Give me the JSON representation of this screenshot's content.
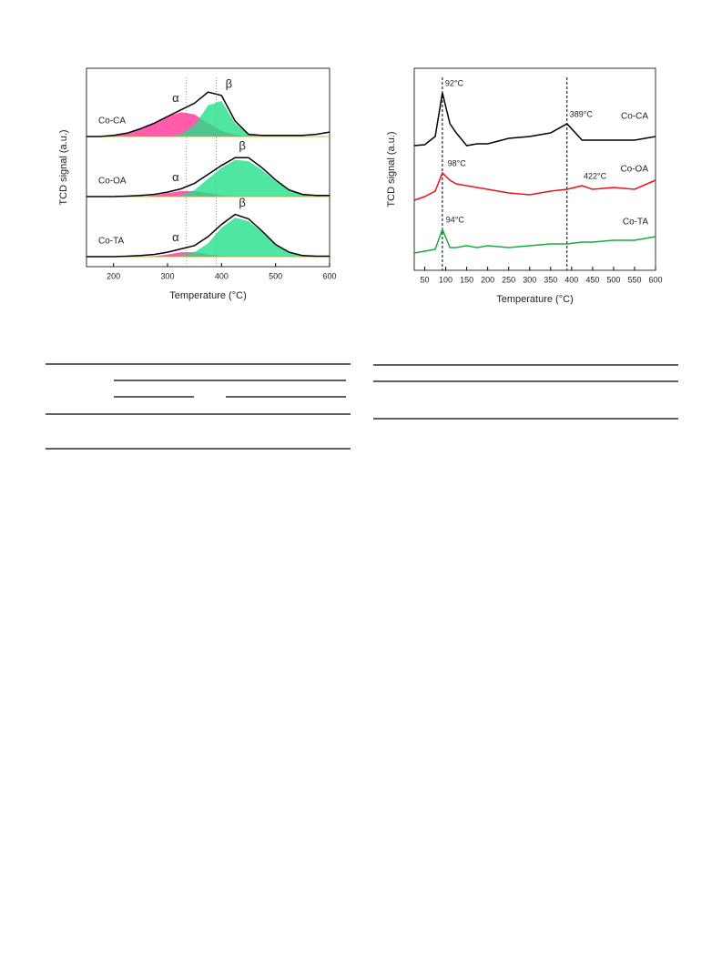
{
  "chart_data": [
    {
      "type": "line",
      "xlabel": "Temperature (°C)",
      "ylabel": "TCD signal (a.u.)",
      "x": [
        150,
        175,
        200,
        225,
        250,
        275,
        300,
        325,
        350,
        375,
        400,
        425,
        450,
        475,
        500,
        525,
        550,
        575,
        600
      ],
      "xlim": [
        150,
        600
      ],
      "xticks": [
        200,
        300,
        400,
        500,
        600
      ],
      "ylim": [
        0,
        2.5
      ],
      "vlines": [
        335,
        390
      ],
      "series": [
        {
          "name": "Co-CA",
          "color": "#000000",
          "values": [
            0,
            0,
            0.05,
            0.15,
            0.35,
            0.6,
            0.9,
            1.2,
            1.5,
            2.0,
            1.85,
            0.7,
            0.1,
            0.05,
            0.05,
            0.05,
            0.05,
            0.1,
            0.2
          ],
          "components": [
            {
              "name": "α",
              "color": "#ff3399",
              "values": [
                0,
                0,
                0.05,
                0.15,
                0.35,
                0.6,
                0.9,
                1.1,
                1.0,
                0.6,
                0.25,
                0.08,
                0,
                0,
                0,
                0,
                0,
                0,
                0
              ]
            },
            {
              "name": "β",
              "color": "#22e08a",
              "values": [
                0,
                0,
                0,
                0,
                0,
                0,
                0,
                0.1,
                0.5,
                1.4,
                1.6,
                0.6,
                0.1,
                0,
                0,
                0,
                0,
                0,
                0
              ]
            }
          ]
        },
        {
          "name": "Co-OA",
          "color": "#000000",
          "values": [
            0,
            0,
            0,
            0.02,
            0.05,
            0.1,
            0.2,
            0.35,
            0.6,
            1.0,
            1.4,
            1.75,
            1.75,
            1.3,
            0.75,
            0.3,
            0.1,
            0.05,
            0.05
          ],
          "components": [
            {
              "name": "α",
              "color": "#ff3399",
              "values": [
                0,
                0,
                0,
                0,
                0,
                0.05,
                0.15,
                0.25,
                0.25,
                0.15,
                0.05,
                0,
                0,
                0,
                0,
                0,
                0,
                0,
                0
              ]
            },
            {
              "name": "β",
              "color": "#22e08a",
              "values": [
                0,
                0,
                0,
                0,
                0,
                0,
                0,
                0.05,
                0.3,
                0.8,
                1.3,
                1.65,
                1.6,
                1.2,
                0.7,
                0.3,
                0.1,
                0,
                0
              ]
            }
          ]
        },
        {
          "name": "Co-TA",
          "color": "#000000",
          "values": [
            0,
            0,
            0,
            0.02,
            0.05,
            0.1,
            0.2,
            0.35,
            0.5,
            0.9,
            1.45,
            1.9,
            1.7,
            1.15,
            0.55,
            0.2,
            0.05,
            0.02,
            0.02
          ],
          "components": [
            {
              "name": "α",
              "color": "#ff3399",
              "values": [
                0,
                0,
                0,
                0,
                0,
                0.02,
                0.1,
                0.2,
                0.2,
                0.1,
                0.03,
                0,
                0,
                0,
                0,
                0,
                0,
                0,
                0
              ]
            },
            {
              "name": "β",
              "color": "#22e08a",
              "values": [
                0,
                0,
                0,
                0,
                0,
                0,
                0,
                0.05,
                0.2,
                0.6,
                1.3,
                1.75,
                1.6,
                1.1,
                0.5,
                0.2,
                0.05,
                0,
                0
              ]
            }
          ]
        }
      ]
    },
    {
      "type": "line",
      "xlabel": "Temperature (°C)",
      "ylabel": "TCD signal (a.u.)",
      "x": [
        25,
        50,
        75,
        92,
        110,
        125,
        150,
        175,
        200,
        250,
        300,
        350,
        389,
        425,
        450,
        500,
        550,
        600
      ],
      "xlim": [
        25,
        600
      ],
      "xticks": [
        50,
        100,
        150,
        200,
        250,
        300,
        350,
        400,
        450,
        500,
        550,
        600
      ],
      "ylim": [
        0,
        3
      ],
      "vlines": [
        92,
        389
      ],
      "series": [
        {
          "name": "Co-CA",
          "color": "#000000",
          "values": [
            0.1,
            0.15,
            0.6,
            3.0,
            1.3,
            0.8,
            0.1,
            0.2,
            0.2,
            0.5,
            0.6,
            0.8,
            1.3,
            0.4,
            0.4,
            0.4,
            0.4,
            0.6
          ],
          "peaks": [
            {
              "value": 92,
              "label": "92°C"
            },
            {
              "value": 389,
              "label": "389°C"
            }
          ]
        },
        {
          "name": "Co-OA",
          "color": "#e8141c",
          "values": [
            0,
            0.2,
            0.5,
            1.5,
            1.1,
            0.9,
            0.8,
            0.7,
            0.6,
            0.4,
            0.3,
            0.5,
            0.6,
            0.8,
            0.6,
            0.7,
            0.6,
            1.1
          ],
          "peaks": [
            {
              "value": 98,
              "label": "98°C"
            },
            {
              "value": 422,
              "label": "422°C"
            }
          ]
        },
        {
          "name": "Co-TA",
          "color": "#1aaa3a",
          "values": [
            0,
            0.1,
            0.2,
            1.3,
            0.3,
            0.3,
            0.4,
            0.3,
            0.4,
            0.3,
            0.4,
            0.5,
            0.5,
            0.6,
            0.6,
            0.7,
            0.7,
            0.9
          ],
          "peaks": [
            {
              "value": 94,
              "label": "94°C"
            }
          ]
        }
      ]
    }
  ]
}
